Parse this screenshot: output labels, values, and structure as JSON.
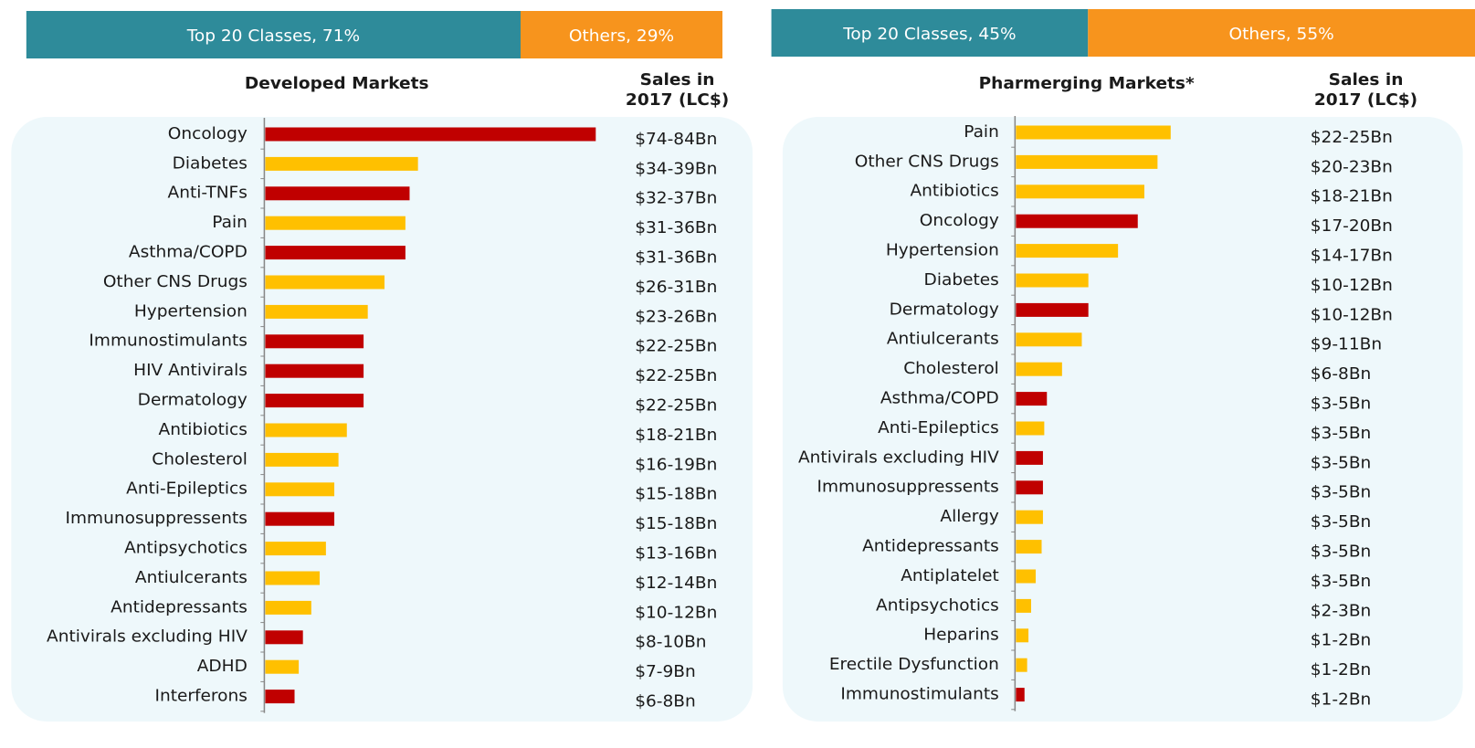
{
  "chart_data": [
    {
      "type": "bar",
      "orientation": "horizontal",
      "title": "Developed Markets",
      "value_header": [
        "Sales in",
        "2017 (LC$)"
      ],
      "share": {
        "values": [
          71,
          29
        ],
        "value_labels": [
          "Top 20 Classes, 71%",
          "Others, 29%"
        ],
        "colors": [
          "#2e8b9a",
          "#f7941d"
        ]
      },
      "categories": [
        "Oncology",
        "Diabetes",
        "Anti-TNFs",
        "Pain",
        "Asthma/COPD",
        "Other CNS Drugs",
        "Hypertension",
        "Immunostimulants",
        "HIV Antivirals",
        "Dermatology",
        "Antibiotics",
        "Cholesterol",
        "Anti-Epileptics",
        "Immunosuppressents",
        "Antipsychotics",
        "Antiulcerants",
        "Antidepressants",
        "Antivirals excluding HIV",
        "ADHD",
        "Interferons"
      ],
      "values": [
        79,
        36.5,
        34.5,
        33.5,
        33.5,
        28.5,
        24.5,
        23.5,
        23.5,
        23.5,
        19.5,
        17.5,
        16.5,
        16.5,
        14.5,
        13,
        11,
        9,
        8,
        7
      ],
      "value_labels": [
        "$74-84Bn",
        "$34-39Bn",
        "$32-37Bn",
        "$31-36Bn",
        "$31-36Bn",
        "$26-31Bn",
        "$23-26Bn",
        "$22-25Bn",
        "$22-25Bn",
        "$22-25Bn",
        "$18-21Bn",
        "$16-19Bn",
        "$15-18Bn",
        "$15-18Bn",
        "$13-16Bn",
        "$12-14Bn",
        "$10-12Bn",
        "$8-10Bn",
        "$7-9Bn",
        "$6-8Bn"
      ],
      "colors": [
        "#c00000",
        "#ffc000",
        "#c00000",
        "#ffc000",
        "#c00000",
        "#ffc000",
        "#ffc000",
        "#c00000",
        "#c00000",
        "#c00000",
        "#ffc000",
        "#ffc000",
        "#ffc000",
        "#c00000",
        "#ffc000",
        "#ffc000",
        "#ffc000",
        "#c00000",
        "#ffc000",
        "#c00000"
      ],
      "xlim": [
        0,
        85
      ]
    },
    {
      "type": "bar",
      "orientation": "horizontal",
      "title": "Pharmerging Markets*",
      "value_header": [
        "Sales in",
        "2017 (LC$)"
      ],
      "share": {
        "values": [
          45,
          55
        ],
        "value_labels": [
          "Top 20 Classes, 45%",
          "Others, 55%"
        ],
        "colors": [
          "#2e8b9a",
          "#f7941d"
        ]
      },
      "categories": [
        "Pain",
        "Other CNS Drugs",
        "Antibiotics",
        "Oncology",
        "Hypertension",
        "Diabetes",
        "Dermatology",
        "Antiulcerants",
        "Cholesterol",
        "Asthma/COPD",
        "Anti-Epileptics",
        "Antivirals excluding HIV",
        "Immunosuppressents",
        "Allergy",
        "Antidepressants",
        "Antiplatelet",
        "Antipsychotics",
        "Heparins",
        "Erectile Dysfunction",
        "Immunostimulants"
      ],
      "values": [
        23.5,
        21.5,
        19.5,
        18.5,
        15.5,
        11,
        11,
        10,
        7,
        4.7,
        4.3,
        4.1,
        4.1,
        4.1,
        3.9,
        3,
        2.3,
        1.9,
        1.7,
        1.3
      ],
      "value_labels": [
        "$22-25Bn",
        "$20-23Bn",
        "$18-21Bn",
        "$17-20Bn",
        "$14-17Bn",
        "$10-12Bn",
        "$10-12Bn",
        "$9-11Bn",
        "$6-8Bn",
        "$3-5Bn",
        "$3-5Bn",
        "$3-5Bn",
        "$3-5Bn",
        "$3-5Bn",
        "$3-5Bn",
        "$3-5Bn",
        "$2-3Bn",
        "$1-2Bn",
        "$1-2Bn",
        "$1-2Bn"
      ],
      "colors": [
        "#ffc000",
        "#ffc000",
        "#ffc000",
        "#c00000",
        "#ffc000",
        "#ffc000",
        "#c00000",
        "#ffc000",
        "#ffc000",
        "#c00000",
        "#ffc000",
        "#c00000",
        "#c00000",
        "#ffc000",
        "#ffc000",
        "#ffc000",
        "#ffc000",
        "#ffc000",
        "#ffc000",
        "#c00000"
      ],
      "xlim": [
        0,
        40
      ]
    }
  ]
}
